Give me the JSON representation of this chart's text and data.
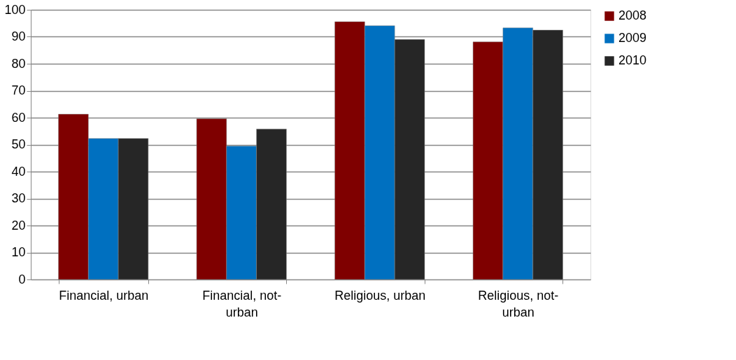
{
  "chart_data": {
    "type": "bar",
    "categories": [
      "Financial, urban",
      "Financial, not-urban",
      "Religious, urban",
      "Religious, not-urban"
    ],
    "series": [
      {
        "name": "2008",
        "color": "#7f0000",
        "values": [
          61.3,
          59.6,
          95.6,
          88.1
        ]
      },
      {
        "name": "2009",
        "color": "#0070c0",
        "values": [
          52.3,
          49.5,
          94.1,
          93.3
        ]
      },
      {
        "name": "2010",
        "color": "#262626",
        "values": [
          52.3,
          55.8,
          89.0,
          92.5
        ]
      }
    ],
    "ylim": [
      0,
      100
    ],
    "yticks": [
      0,
      10,
      20,
      30,
      40,
      50,
      60,
      70,
      80,
      90,
      100
    ],
    "grid": "y",
    "legend": "right"
  }
}
